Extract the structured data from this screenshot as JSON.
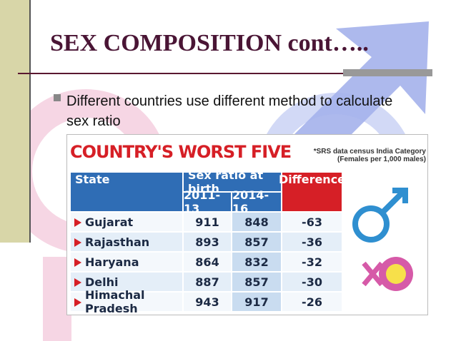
{
  "slide": {
    "title": "SEX COMPOSITION cont…..",
    "bullet": "Different countries use different method to calculate sex ratio",
    "table": {
      "title": "COUNTRY'S WORST FIVE",
      "note": "*SRS data census India Category (Females per 1,000 males)",
      "headers": [
        "State",
        "Sex ratio at birth",
        "Difference"
      ],
      "subheaders": [
        "2011-13",
        "2014-16"
      ],
      "rows": [
        [
          "Gujarat",
          911,
          848,
          -63
        ],
        [
          "Rajasthan",
          893,
          857,
          -36
        ],
        [
          "Haryana",
          864,
          832,
          -32
        ],
        [
          "Delhi",
          887,
          857,
          -30
        ],
        [
          "Himachal Pradesh",
          943,
          917,
          -26
        ]
      ]
    }
  }
}
